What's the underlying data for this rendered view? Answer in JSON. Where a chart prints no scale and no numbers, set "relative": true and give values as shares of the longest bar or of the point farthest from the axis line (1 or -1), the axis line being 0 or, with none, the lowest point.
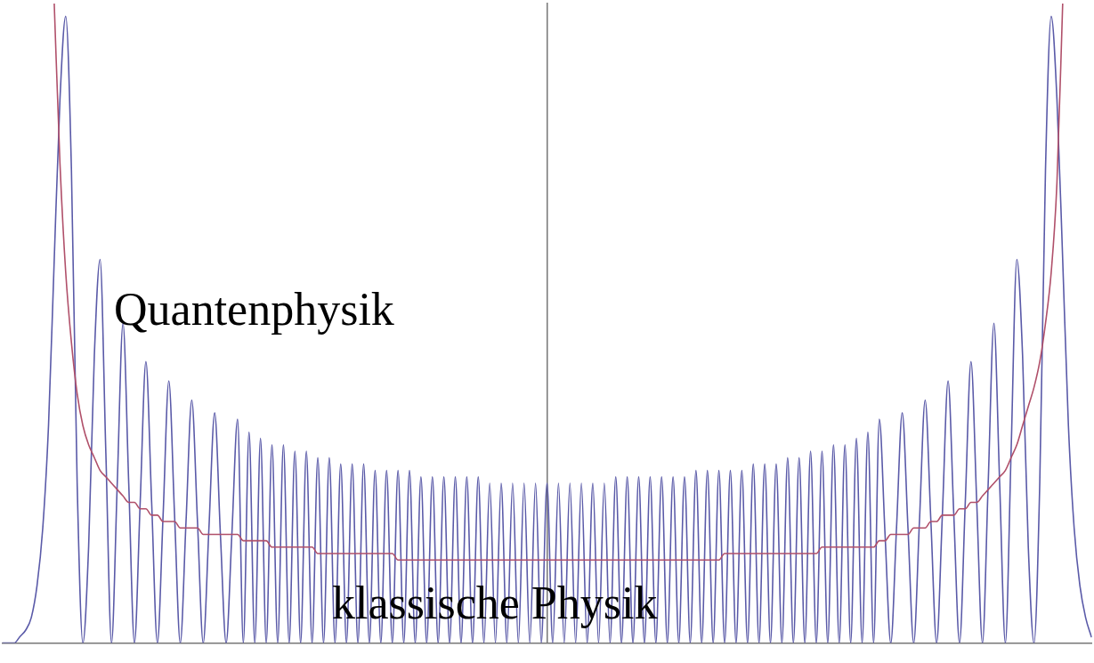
{
  "chart_data": {
    "type": "line",
    "relative": true,
    "grid": false,
    "legend": false,
    "marker": "none",
    "line_style": "solid",
    "categories": [
      null,
      null,
      null,
      null,
      null,
      null,
      null,
      null,
      null,
      null,
      null,
      null,
      null,
      null,
      null,
      null,
      null,
      null,
      null,
      null,
      null,
      null,
      null,
      null,
      null,
      null,
      null,
      null,
      null,
      null,
      null,
      null,
      null,
      null,
      null,
      null,
      null,
      null,
      null,
      null,
      null,
      null,
      null,
      null,
      null,
      null,
      null,
      null,
      null,
      null,
      null,
      null,
      null,
      null,
      null,
      null,
      null,
      null,
      null,
      null,
      null,
      null,
      null,
      null,
      null,
      null,
      null,
      null,
      null,
      null,
      null,
      null,
      null,
      null,
      null,
      null,
      null,
      null,
      null,
      null,
      null,
      null,
      null,
      null,
      null,
      null,
      null,
      null,
      null,
      null,
      null,
      null,
      null,
      null,
      null,
      null,
      null,
      null,
      null,
      null,
      null,
      null,
      null,
      null,
      null,
      null,
      null,
      null,
      null,
      null,
      null,
      null,
      null,
      null,
      null,
      null,
      null,
      null,
      null,
      null,
      null,
      null,
      null,
      null,
      null,
      null,
      null,
      null,
      null,
      null,
      null,
      null,
      null,
      null,
      null,
      null,
      null,
      null,
      null,
      null,
      null,
      null,
      null,
      null,
      null,
      null,
      null,
      null,
      null,
      null,
      null,
      null,
      null,
      null,
      null,
      null,
      null,
      null,
      null,
      null,
      null,
      null,
      null,
      null,
      null,
      null,
      null,
      null,
      null,
      null,
      null,
      null,
      null,
      null,
      null,
      null,
      null,
      null,
      null,
      null,
      null,
      null,
      null,
      null,
      null,
      null,
      null,
      null,
      null,
      null,
      null
    ],
    "series": [
      {
        "color": "#5a5aa8",
        "values": [
          0,
          0,
          0,
          0.01,
          0.02,
          0.04,
          0.09,
          0.18,
          0.34,
          0.6,
          0.85,
          0.98,
          0.74,
          0.25,
          0,
          0.15,
          0.45,
          0.6,
          0.3,
          0,
          0.25,
          0.5,
          0.25,
          0,
          0.22,
          0.44,
          0.22,
          0,
          0.2,
          0.41,
          0.2,
          0,
          0.19,
          0.38,
          0.19,
          0,
          0.18,
          0.36,
          0.17,
          0,
          0.17,
          0.35,
          0,
          0.33,
          0,
          0.32,
          0,
          0.31,
          0,
          0.31,
          0,
          0.3,
          0,
          0.3,
          0,
          0.29,
          0,
          0.29,
          0,
          0.28,
          0,
          0.28,
          0,
          0.28,
          0,
          0.27,
          0,
          0.27,
          0,
          0.27,
          0,
          0.27,
          0,
          0.26,
          0,
          0.26,
          0,
          0.26,
          0,
          0.26,
          0,
          0.26,
          0,
          0.26,
          0,
          0.25,
          0,
          0.25,
          0,
          0.25,
          0,
          0.25,
          0,
          0.25,
          0,
          0.25,
          0,
          0.25,
          0,
          0.25,
          0,
          0.25,
          0,
          0.25,
          0,
          0.25,
          0,
          0.26,
          0,
          0.26,
          0,
          0.26,
          0,
          0.26,
          0,
          0.26,
          0,
          0.26,
          0,
          0.26,
          0,
          0.27,
          0,
          0.27,
          0,
          0.27,
          0,
          0.27,
          0,
          0.27,
          0,
          0.28,
          0,
          0.28,
          0,
          0.28,
          0,
          0.29,
          0,
          0.29,
          0,
          0.3,
          0,
          0.3,
          0,
          0.31,
          0,
          0.31,
          0,
          0.32,
          0,
          0.33,
          0,
          0.35,
          0.17,
          0,
          0.18,
          0.36,
          0.18,
          0,
          0.19,
          0.38,
          0.19,
          0,
          0.2,
          0.41,
          0.2,
          0,
          0.22,
          0.44,
          0.22,
          0,
          0.25,
          0.5,
          0.25,
          0,
          0.3,
          0.6,
          0.45,
          0.15,
          0,
          0.25,
          0.74,
          0.98,
          0.85,
          0.6,
          0.34,
          0.18,
          0.09,
          0.04,
          0.01
        ]
      },
      {
        "color": "#b0506a",
        "values": [
          null,
          null,
          null,
          null,
          null,
          null,
          null,
          null,
          null,
          1,
          0.75,
          0.58,
          0.47,
          0.39,
          0.34,
          0.31,
          0.29,
          0.27,
          0.26,
          0.25,
          0.24,
          0.23,
          0.22,
          0.22,
          0.21,
          0.21,
          0.2,
          0.2,
          0.19,
          0.19,
          0.19,
          0.18,
          0.18,
          0.18,
          0.18,
          0.17,
          0.17,
          0.17,
          0.17,
          0.17,
          0.17,
          0.17,
          0.16,
          0.16,
          0.16,
          0.16,
          0.16,
          0.15,
          0.15,
          0.15,
          0.15,
          0.15,
          0.15,
          0.15,
          0.15,
          0.14,
          0.14,
          0.14,
          0.14,
          0.14,
          0.14,
          0.14,
          0.14,
          0.14,
          0.14,
          0.14,
          0.14,
          0.14,
          0.14,
          0.13,
          0.13,
          0.13,
          0.13,
          0.13,
          0.13,
          0.13,
          0.13,
          0.13,
          0.13,
          0.13,
          0.13,
          0.13,
          0.13,
          0.13,
          0.13,
          0.13,
          0.13,
          0.13,
          0.13,
          0.13,
          0.13,
          0.13,
          0.13,
          0.13,
          0.13,
          0.13,
          0.13,
          0.13,
          0.13,
          0.13,
          0.13,
          0.13,
          0.13,
          0.13,
          0.13,
          0.13,
          0.13,
          0.13,
          0.13,
          0.13,
          0.13,
          0.13,
          0.13,
          0.13,
          0.13,
          0.13,
          0.13,
          0.13,
          0.13,
          0.13,
          0.13,
          0.13,
          0.13,
          0.13,
          0.13,
          0.13,
          0.14,
          0.14,
          0.14,
          0.14,
          0.14,
          0.14,
          0.14,
          0.14,
          0.14,
          0.14,
          0.14,
          0.14,
          0.14,
          0.14,
          0.14,
          0.14,
          0.14,
          0.15,
          0.15,
          0.15,
          0.15,
          0.15,
          0.15,
          0.15,
          0.15,
          0.15,
          0.15,
          0.16,
          0.16,
          0.17,
          0.17,
          0.17,
          0.17,
          0.18,
          0.18,
          0.18,
          0.19,
          0.19,
          0.2,
          0.2,
          0.2,
          0.21,
          0.21,
          0.22,
          0.22,
          0.23,
          0.24,
          0.25,
          0.26,
          0.27,
          0.29,
          0.31,
          0.34,
          0.37,
          0.4,
          0.44,
          0.5,
          0.58,
          0.72,
          1,
          null,
          null,
          null,
          null,
          null
        ]
      }
    ],
    "annotations": [
      "Quantenphysik",
      "klassische Physik"
    ]
  }
}
